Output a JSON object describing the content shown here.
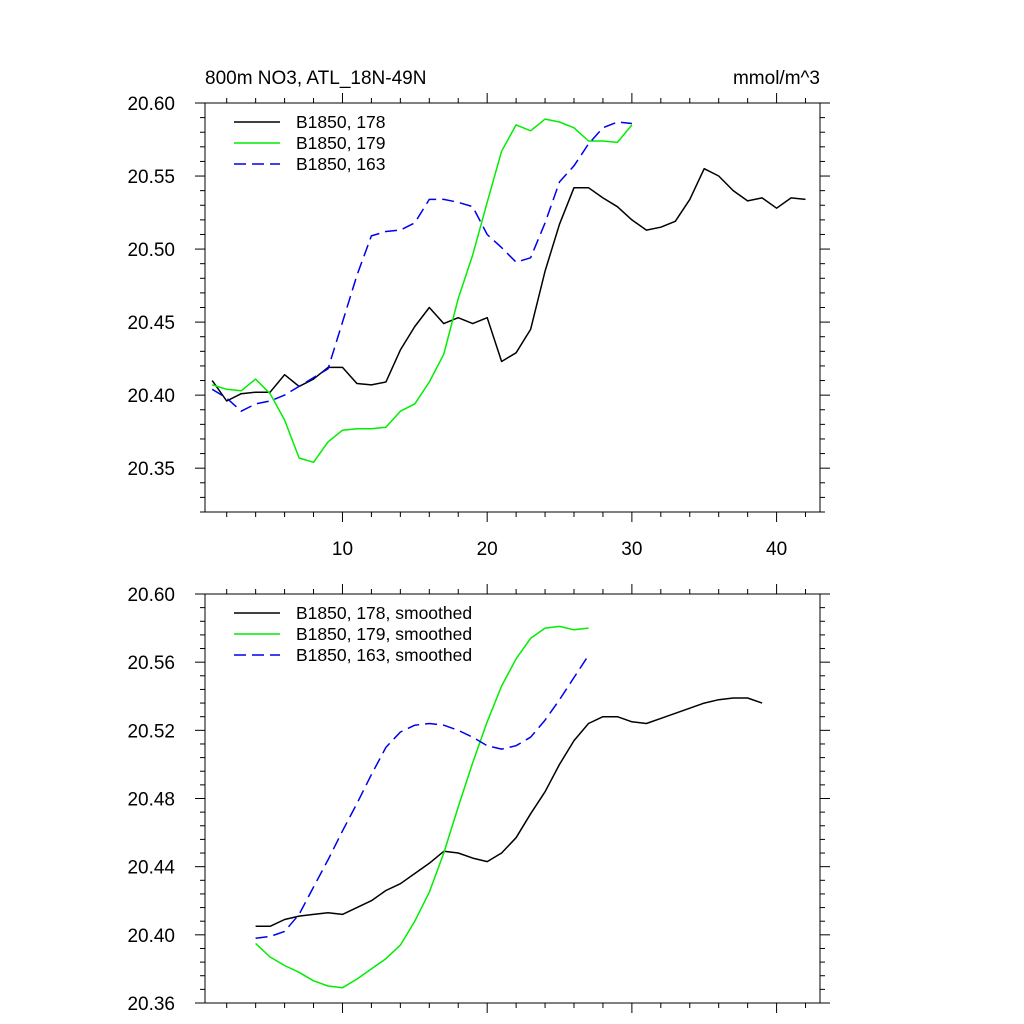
{
  "chart_data": [
    {
      "type": "line",
      "title": "800m NO3, ATL_18N-49N",
      "units": "mmol/m^3",
      "xlim": [
        0.5,
        43
      ],
      "ylim": [
        20.32,
        20.6
      ],
      "xticks": [
        10,
        20,
        30,
        40
      ],
      "yticks": [
        20.35,
        20.4,
        20.45,
        20.5,
        20.55,
        20.6
      ],
      "ytick_labels": [
        "20.35",
        "20.40",
        "20.45",
        "20.50",
        "20.55",
        "20.60"
      ],
      "xtick_labels": [
        "10",
        "20",
        "30",
        "40"
      ],
      "legend_position": "top-left",
      "grid": false,
      "series": [
        {
          "name": "B1850, 178",
          "color": "#000000",
          "dash": "solid",
          "x": [
            1,
            2,
            3,
            4,
            5,
            6,
            7,
            8,
            9,
            10,
            11,
            12,
            13,
            14,
            15,
            16,
            17,
            18,
            19,
            20,
            21,
            22,
            23,
            24,
            25,
            26,
            27,
            28,
            29,
            30,
            31,
            32,
            33,
            34,
            35,
            36,
            37,
            38,
            39,
            40,
            41,
            42
          ],
          "y": [
            20.41,
            20.396,
            20.401,
            20.402,
            20.402,
            20.414,
            20.406,
            20.411,
            20.419,
            20.419,
            20.408,
            20.407,
            20.409,
            20.431,
            20.447,
            20.46,
            20.449,
            20.453,
            20.449,
            20.453,
            20.423,
            20.429,
            20.445,
            20.485,
            20.517,
            20.542,
            20.542,
            20.535,
            20.529,
            20.52,
            20.513,
            20.515,
            20.519,
            20.534,
            20.555,
            20.55,
            20.54,
            20.533,
            20.535,
            20.528,
            20.535,
            20.534
          ]
        },
        {
          "name": "B1850, 179",
          "color": "#00ee00",
          "dash": "solid",
          "x": [
            1,
            2,
            3,
            4,
            5,
            6,
            7,
            8,
            9,
            10,
            11,
            12,
            13,
            14,
            15,
            16,
            17,
            18,
            19,
            20,
            21,
            22,
            23,
            24,
            25,
            26,
            27,
            28,
            29,
            30
          ],
          "y": [
            20.407,
            20.404,
            20.403,
            20.411,
            20.401,
            20.383,
            20.357,
            20.354,
            20.368,
            20.376,
            20.377,
            20.377,
            20.378,
            20.389,
            20.394,
            20.409,
            20.428,
            20.466,
            20.496,
            20.532,
            20.567,
            20.585,
            20.581,
            20.589,
            20.587,
            20.583,
            20.574,
            20.574,
            20.573,
            20.585
          ]
        },
        {
          "name": "B1850, 163",
          "color": "#0000ee",
          "dash": "dashed",
          "x": [
            1,
            2,
            3,
            4,
            5,
            6,
            7,
            8,
            9,
            10,
            11,
            12,
            13,
            14,
            15,
            16,
            17,
            18,
            19,
            20,
            21,
            22,
            23,
            24,
            25,
            26,
            27,
            28,
            29,
            30
          ],
          "y": [
            20.404,
            20.398,
            20.389,
            20.394,
            20.396,
            20.4,
            20.406,
            20.412,
            20.418,
            20.45,
            20.482,
            20.509,
            20.512,
            20.513,
            20.518,
            20.534,
            20.534,
            20.532,
            20.529,
            20.51,
            20.501,
            20.491,
            20.494,
            20.518,
            20.546,
            20.557,
            20.572,
            20.583,
            20.587,
            20.586
          ]
        }
      ]
    },
    {
      "type": "line",
      "title": "",
      "xlim": [
        0.5,
        43
      ],
      "ylim": [
        20.36,
        20.6
      ],
      "xticks": [
        10,
        20,
        30,
        40
      ],
      "yticks": [
        20.36,
        20.4,
        20.44,
        20.48,
        20.52,
        20.56,
        20.6
      ],
      "ytick_labels": [
        "20.36",
        "20.40",
        "20.44",
        "20.48",
        "20.52",
        "20.56",
        "20.60"
      ],
      "legend_position": "top-left",
      "grid": false,
      "series": [
        {
          "name": "B1850, 178, smoothed",
          "color": "#000000",
          "dash": "solid",
          "x": [
            4,
            5,
            6,
            7,
            8,
            9,
            10,
            11,
            12,
            13,
            14,
            15,
            16,
            17,
            18,
            19,
            20,
            21,
            22,
            23,
            24,
            25,
            26,
            27,
            28,
            29,
            30,
            31,
            32,
            33,
            34,
            35,
            36,
            37,
            38,
            39
          ],
          "y": [
            20.405,
            20.405,
            20.409,
            20.411,
            20.412,
            20.413,
            20.412,
            20.416,
            20.42,
            20.426,
            20.43,
            20.436,
            20.442,
            20.449,
            20.448,
            20.445,
            20.443,
            20.448,
            20.457,
            20.471,
            20.484,
            20.5,
            20.514,
            20.524,
            20.528,
            20.528,
            20.525,
            20.524,
            20.527,
            20.53,
            20.533,
            20.536,
            20.538,
            20.539,
            20.539,
            20.536
          ]
        },
        {
          "name": "B1850, 179, smoothed",
          "color": "#00ee00",
          "dash": "solid",
          "x": [
            4,
            5,
            6,
            7,
            8,
            9,
            10,
            11,
            12,
            13,
            14,
            15,
            16,
            17,
            18,
            19,
            20,
            21,
            22,
            23,
            24,
            25,
            26,
            27
          ],
          "y": [
            20.395,
            20.387,
            20.382,
            20.378,
            20.373,
            20.37,
            20.369,
            20.374,
            20.38,
            20.386,
            20.394,
            20.408,
            20.425,
            20.448,
            20.475,
            20.501,
            20.525,
            20.546,
            20.562,
            20.574,
            20.58,
            20.581,
            20.579,
            20.58
          ]
        },
        {
          "name": "B1850, 163, smoothed",
          "color": "#0000ee",
          "dash": "dashed",
          "x": [
            4,
            5,
            6,
            7,
            8,
            9,
            10,
            11,
            12,
            13,
            14,
            15,
            16,
            17,
            18,
            19,
            20,
            21,
            22,
            23,
            24,
            25,
            26,
            27
          ],
          "y": [
            20.398,
            20.399,
            20.402,
            20.412,
            20.428,
            20.444,
            20.461,
            20.477,
            20.494,
            20.51,
            20.519,
            20.523,
            20.524,
            20.523,
            20.52,
            20.516,
            20.511,
            20.509,
            20.511,
            20.516,
            20.526,
            20.538,
            20.551,
            20.564
          ]
        }
      ]
    }
  ]
}
